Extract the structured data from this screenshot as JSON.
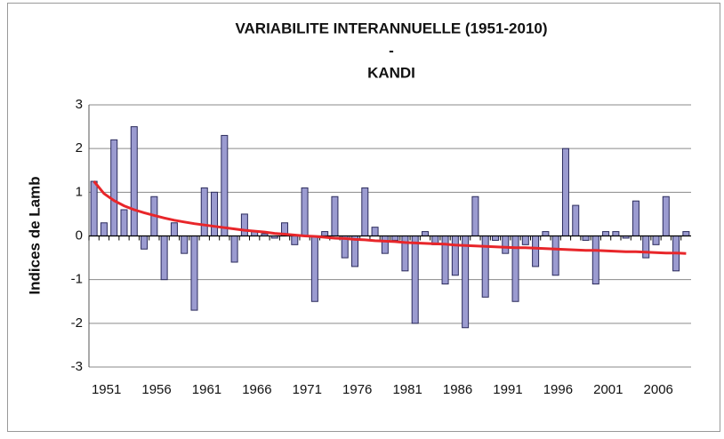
{
  "chart_data": {
    "type": "bar",
    "title": [
      "VARIABILITE INTERANNUELLE (1951-2010)",
      "-",
      "KANDI"
    ],
    "y_label": "Indices de Lamb",
    "categories": [
      "1951",
      null,
      null,
      null,
      null,
      "1956",
      null,
      null,
      null,
      null,
      "1961",
      null,
      null,
      null,
      null,
      "1966",
      null,
      null,
      null,
      null,
      "1971",
      null,
      null,
      null,
      null,
      "1976",
      null,
      null,
      null,
      null,
      "1981",
      null,
      null,
      null,
      null,
      "1986",
      null,
      null,
      null,
      null,
      "1991",
      null,
      null,
      null,
      null,
      "1996",
      null,
      null,
      null,
      null,
      "2001",
      null,
      null,
      null,
      null,
      "2006",
      null,
      null,
      null,
      null
    ],
    "values": [
      1.25,
      0.3,
      2.2,
      0.6,
      2.5,
      -0.3,
      0.9,
      -1.0,
      0.3,
      -0.4,
      -1.7,
      1.1,
      1.0,
      2.3,
      -0.6,
      0.5,
      0.1,
      0.05,
      -0.05,
      0.3,
      -0.2,
      1.1,
      -1.5,
      0.1,
      0.9,
      -0.5,
      -0.7,
      1.1,
      0.2,
      -0.4,
      -0.1,
      -0.8,
      -2.0,
      0.1,
      -0.2,
      -1.1,
      -0.9,
      -2.1,
      0.9,
      -1.4,
      -0.1,
      -0.4,
      -1.5,
      -0.2,
      -0.7,
      0.1,
      -0.9,
      2.0,
      0.7,
      -0.1,
      -1.1,
      0.1,
      0.1,
      -0.05,
      0.8,
      -0.5,
      -0.2,
      0.9,
      -0.8,
      0.1
    ],
    "color": "#9b9bd0",
    "trend": {
      "color": "#e8262a",
      "values": [
        1.25,
        0.97,
        0.81,
        0.69,
        0.6,
        0.53,
        0.47,
        0.41,
        0.36,
        0.32,
        0.28,
        0.25,
        0.22,
        0.19,
        0.16,
        0.13,
        0.11,
        0.09,
        0.06,
        0.04,
        0.02,
        0.0,
        -0.01,
        -0.03,
        -0.05,
        -0.06,
        -0.08,
        -0.09,
        -0.11,
        -0.12,
        -0.13,
        -0.15,
        -0.16,
        -0.17,
        -0.18,
        -0.19,
        -0.21,
        -0.22,
        -0.23,
        -0.24,
        -0.25,
        -0.26,
        -0.27,
        -0.27,
        -0.28,
        -0.29,
        -0.3,
        -0.31,
        -0.32,
        -0.33,
        -0.33,
        -0.34,
        -0.35,
        -0.36,
        -0.36,
        -0.37,
        -0.38,
        -0.39,
        -0.39,
        -0.4
      ]
    },
    "ylim": [
      -3,
      3
    ],
    "yticks": [
      -3,
      -2,
      -1,
      0,
      1,
      2,
      3
    ],
    "grid": true
  }
}
